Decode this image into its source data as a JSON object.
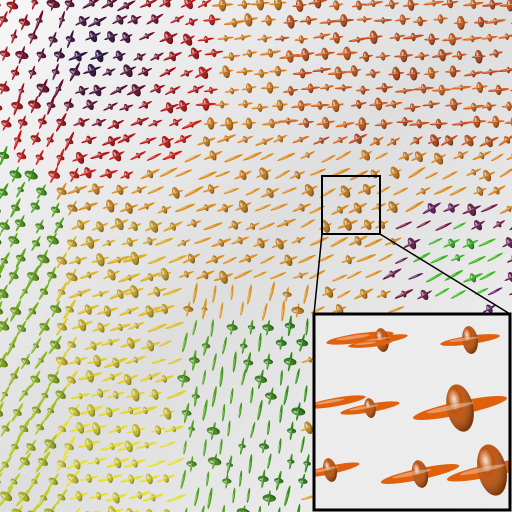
{
  "image": {
    "kind": "3D tensor-glyph visualization (disc-and-rod superquadric glyphs)",
    "background_color": "#f2f2f2",
    "has_inset_zoom": true,
    "color_regions": [
      {
        "region": "top-left",
        "dominant_colors": [
          "#1a0f4a",
          "#8c0a1e",
          "#d41414",
          "#f08a10"
        ]
      },
      {
        "region": "top-right",
        "dominant_colors": [
          "#e06a18",
          "#b0301a",
          "#c02a0a"
        ]
      },
      {
        "region": "center",
        "dominant_colors": [
          "#e08018",
          "#d8a020",
          "#c89018"
        ]
      },
      {
        "region": "left",
        "dominant_colors": [
          "#3aa015",
          "#b8c820",
          "#e6e020"
        ]
      },
      {
        "region": "bottom-left",
        "dominant_colors": [
          "#d8e030",
          "#9ac828",
          "#5aaa20"
        ]
      },
      {
        "region": "bottom-center",
        "dominant_colors": [
          "#3a9a1a",
          "#8a1a1a",
          "#1a1a6a"
        ]
      },
      {
        "region": "right",
        "dominant_colors": [
          "#7a1a3a",
          "#3ab820",
          "#1a6ad0"
        ]
      }
    ],
    "inset": {
      "glyph_color": "#e0600e",
      "border_color": "#000000",
      "inset_background": "#ececec"
    }
  }
}
